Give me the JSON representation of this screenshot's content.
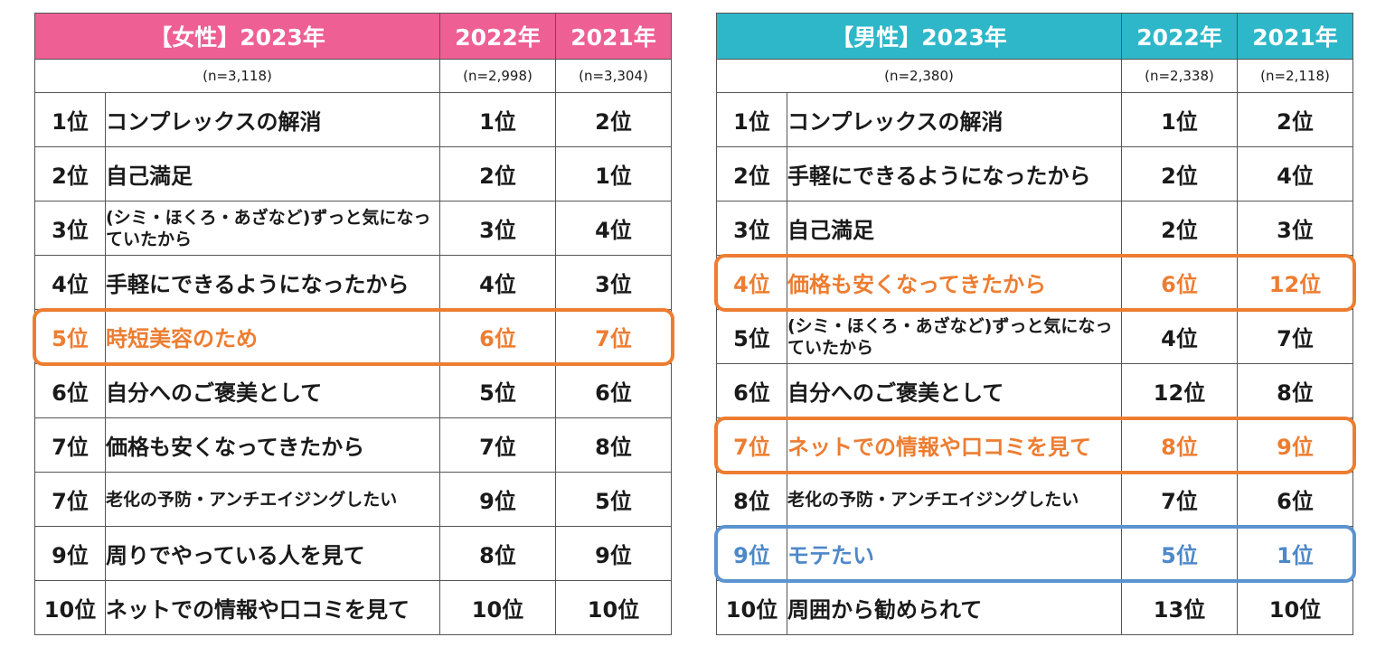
{
  "female": {
    "header": {
      "title": "【女性】2023年",
      "col_2022": "2022年",
      "col_2021": "2021年"
    },
    "sample": {
      "n_2023": "(n=3,118)",
      "n_2022": "(n=2,998)",
      "n_2021": "(n=3,304)"
    },
    "rows": [
      {
        "rank": "1位",
        "reason": "コンプレックスの解消",
        "y2022": "1位",
        "y2021": "2位",
        "highlight": "none"
      },
      {
        "rank": "2位",
        "reason": "自己満足",
        "y2022": "2位",
        "y2021": "1位",
        "highlight": "none"
      },
      {
        "rank": "3位",
        "reason": "(シミ・ほくろ・あざなど)ずっと気になっていたから",
        "y2022": "3位",
        "y2021": "4位",
        "highlight": "none"
      },
      {
        "rank": "4位",
        "reason": "手軽にできるようになったから",
        "y2022": "4位",
        "y2021": "3位",
        "highlight": "none"
      },
      {
        "rank": "5位",
        "reason": "時短美容のため",
        "y2022": "6位",
        "y2021": "7位",
        "highlight": "orange"
      },
      {
        "rank": "6位",
        "reason": "自分へのご褒美として",
        "y2022": "5位",
        "y2021": "6位",
        "highlight": "none"
      },
      {
        "rank": "7位",
        "reason": "価格も安くなってきたから",
        "y2022": "7位",
        "y2021": "8位",
        "highlight": "none"
      },
      {
        "rank": "7位",
        "reason": "老化の予防・アンチエイジングしたい",
        "y2022": "9位",
        "y2021": "5位",
        "highlight": "none"
      },
      {
        "rank": "9位",
        "reason": "周りでやっている人を見て",
        "y2022": "8位",
        "y2021": "9位",
        "highlight": "none"
      },
      {
        "rank": "10位",
        "reason": "ネットでの情報や口コミを見て",
        "y2022": "10位",
        "y2021": "10位",
        "highlight": "none"
      }
    ]
  },
  "male": {
    "header": {
      "title": "【男性】2023年",
      "col_2022": "2022年",
      "col_2021": "2021年"
    },
    "sample": {
      "n_2023": "(n=2,380)",
      "n_2022": "(n=2,338)",
      "n_2021": "(n=2,118)"
    },
    "rows": [
      {
        "rank": "1位",
        "reason": "コンプレックスの解消",
        "y2022": "1位",
        "y2021": "2位",
        "highlight": "none"
      },
      {
        "rank": "2位",
        "reason": "手軽にできるようになったから",
        "y2022": "2位",
        "y2021": "4位",
        "highlight": "none"
      },
      {
        "rank": "3位",
        "reason": "自己満足",
        "y2022": "2位",
        "y2021": "3位",
        "highlight": "none"
      },
      {
        "rank": "4位",
        "reason": "価格も安くなってきたから",
        "y2022": "6位",
        "y2021": "12位",
        "highlight": "orange"
      },
      {
        "rank": "5位",
        "reason": "(シミ・ほくろ・あざなど)ずっと気になっていたから",
        "y2022": "4位",
        "y2021": "7位",
        "highlight": "none"
      },
      {
        "rank": "6位",
        "reason": "自分へのご褒美として",
        "y2022": "12位",
        "y2021": "8位",
        "highlight": "none"
      },
      {
        "rank": "7位",
        "reason": "ネットでの情報や口コミを見て",
        "y2022": "8位",
        "y2021": "9位",
        "highlight": "orange"
      },
      {
        "rank": "8位",
        "reason": "老化の予防・アンチエイジングしたい",
        "y2022": "7位",
        "y2021": "6位",
        "highlight": "none"
      },
      {
        "rank": "9位",
        "reason": "モテたい",
        "y2022": "5位",
        "y2021": "1位",
        "highlight": "blue"
      },
      {
        "rank": "10位",
        "reason": "周囲から勧められて",
        "y2022": "13位",
        "y2021": "10位",
        "highlight": "none"
      }
    ]
  },
  "colors": {
    "female_header": "#ee5f94",
    "male_header": "#2eb7c9",
    "highlight_orange": "#ed7d31",
    "highlight_blue": "#4e88c8"
  }
}
